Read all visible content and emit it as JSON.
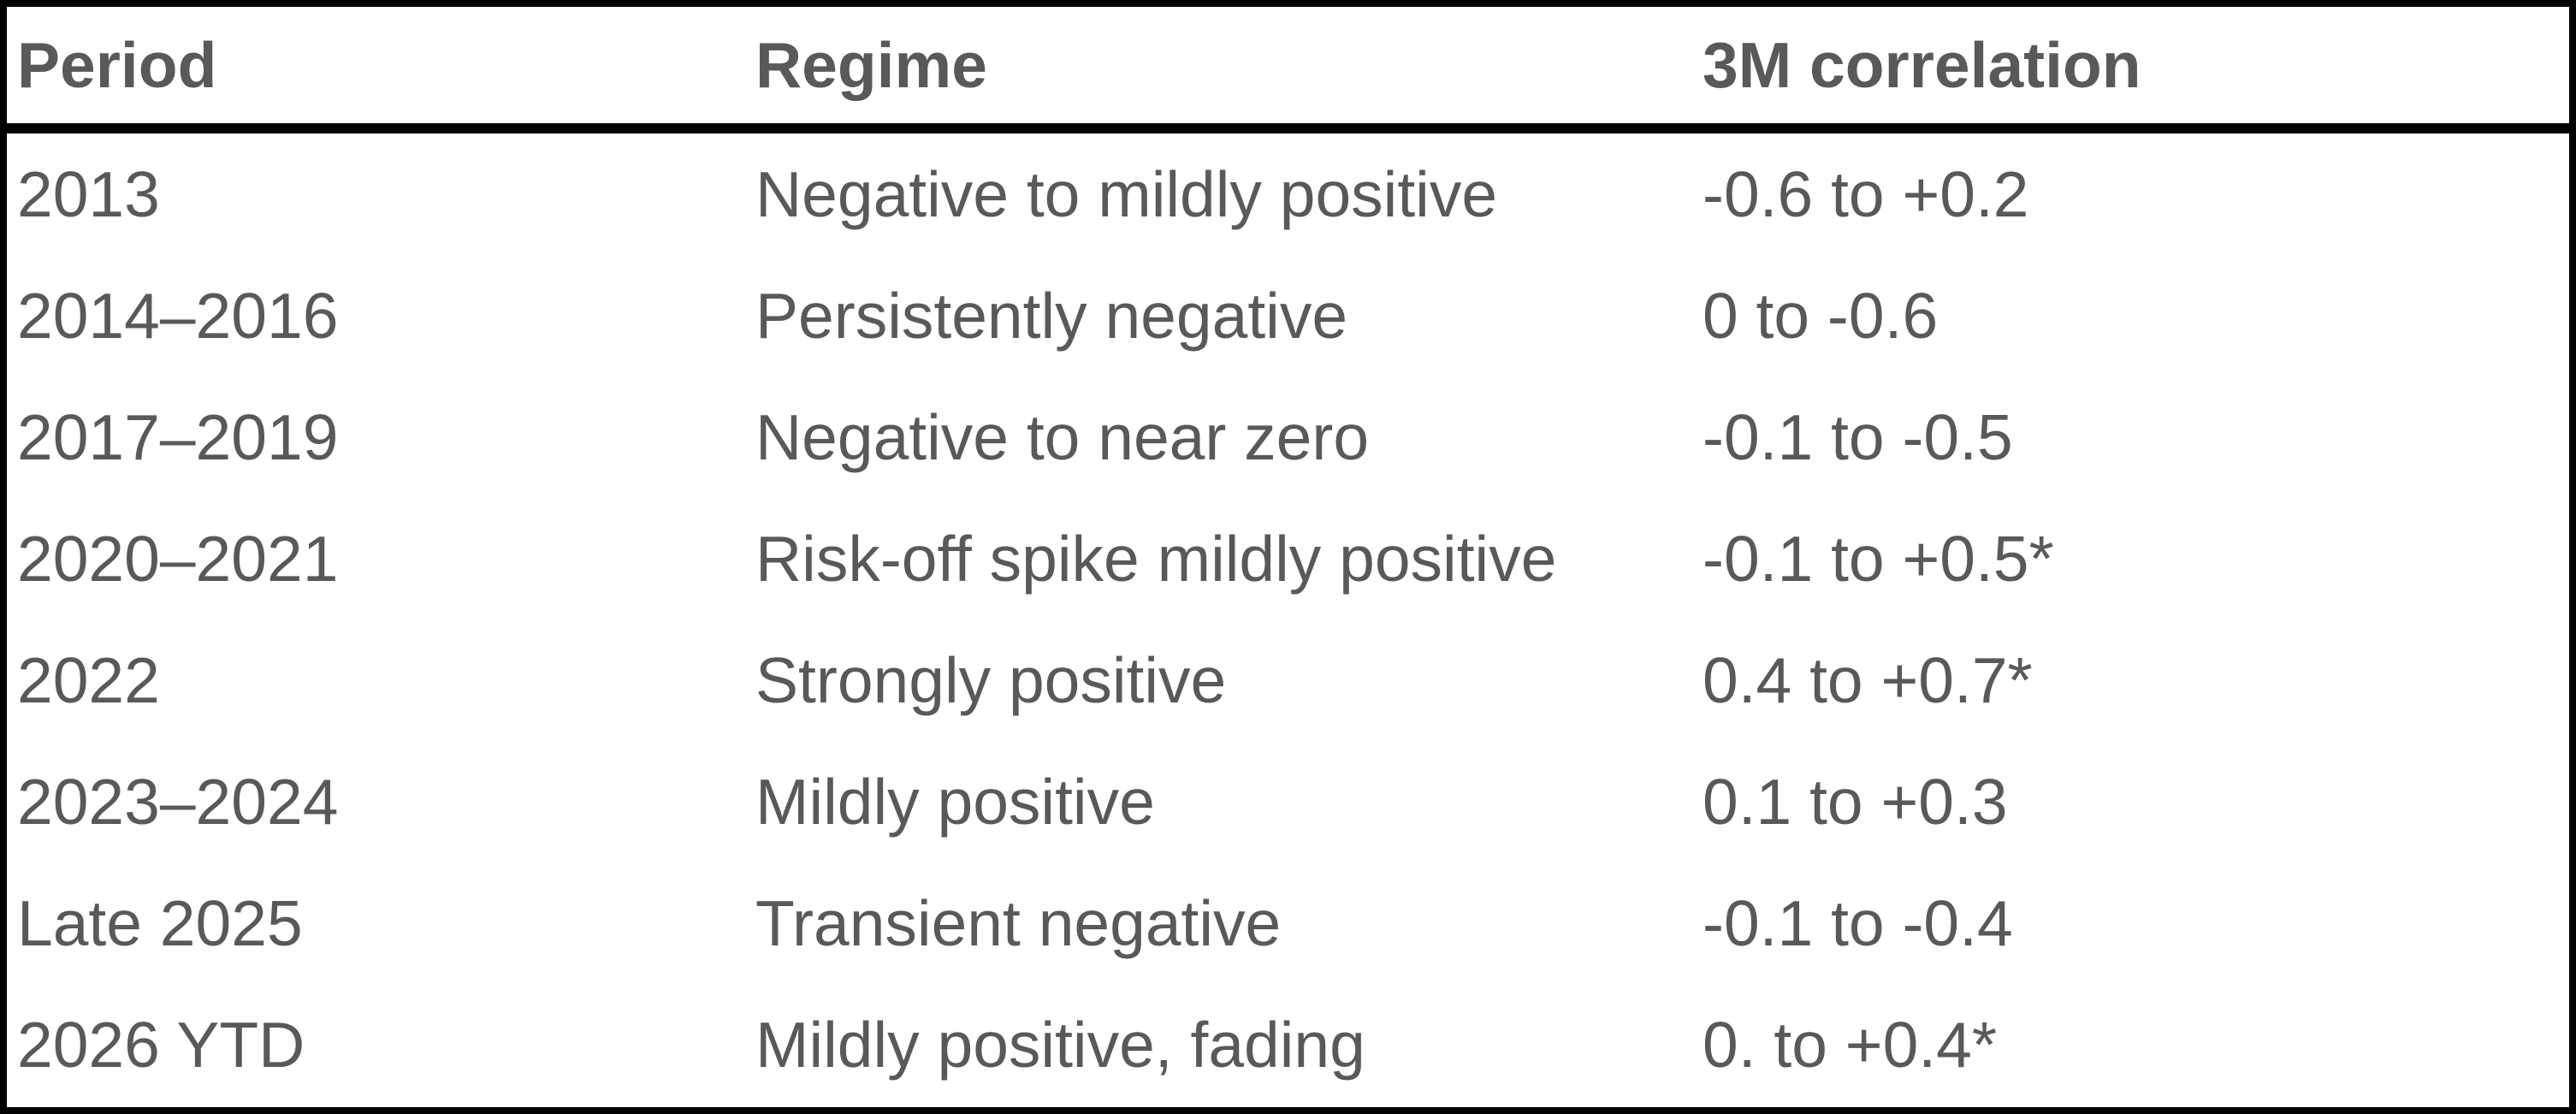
{
  "table": {
    "header": [
      "Period",
      "Regime",
      "3M correlation"
    ],
    "rows": [
      [
        "2013",
        "Negative to mildly positive",
        "-0.6 to +0.2"
      ],
      [
        "2014–2016",
        "Persistently negative",
        "0 to -0.6"
      ],
      [
        "2017–2019",
        "Negative to near zero",
        "-0.1 to -0.5"
      ],
      [
        "2020–2021",
        "Risk-off spike mildly positive",
        "-0.1 to +0.5*"
      ],
      [
        "2022",
        "Strongly positive",
        "0.4 to +0.7*"
      ],
      [
        "2023–2024",
        "Mildly positive",
        "0.1 to +0.3"
      ],
      [
        "Late 2025",
        "Transient negative",
        "-0.1 to -0.4"
      ],
      [
        "2026 YTD",
        "Mildly positive, fading",
        "0. to +0.4*"
      ]
    ]
  }
}
